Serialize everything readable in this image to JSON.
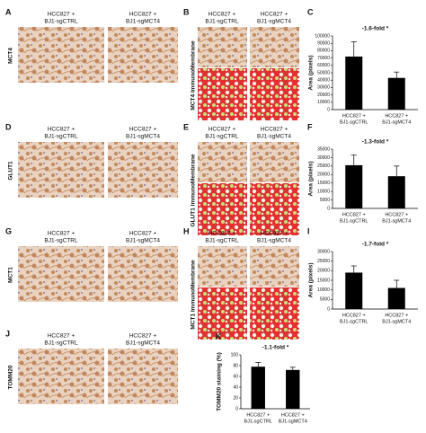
{
  "panels": [
    {
      "letter": "A",
      "stain": "MCT4",
      "mid_letter": "B",
      "mid_label": "MCT4 ImmunoMembrane",
      "headers": [
        [
          "HCC827 +",
          "BJ1-sgCTRL"
        ],
        [
          "HCC827 +",
          "BJ1-sgMCT4"
        ]
      ],
      "mid_headers": [
        [
          "HCC827 +",
          "BJ1-sgCTRL"
        ],
        [
          "HCC827 +",
          "BJ1-sgMCT4"
        ]
      ]
    },
    {
      "letter": "D",
      "stain": "GLUT1",
      "mid_letter": "E",
      "mid_label": "GLUT1 ImmunoMembrane",
      "headers": [
        [
          "HCC827 +",
          "BJ1-sgCTRL"
        ],
        [
          "HCC827 +",
          "BJ1-sgMCT4"
        ]
      ],
      "mid_headers": [
        [
          "HCC827 +",
          "BJ1-sgCTRL"
        ],
        [
          "HCC827 +",
          "BJ1-sgMCT4"
        ]
      ]
    },
    {
      "letter": "G",
      "stain": "MCT1",
      "mid_letter": "H",
      "mid_label": "MCT1 ImmunoMembrane",
      "headers": [
        [
          "HCC827 +",
          "BJ1-sgCTRL"
        ],
        [
          "HCC827 +",
          "BJ1-sgMCT4"
        ]
      ],
      "mid_headers": [
        [
          "HCC827 +",
          "BJ1-sgCTRL"
        ],
        [
          "HCC827 +",
          "BJ1-sgMCT4"
        ]
      ]
    },
    {
      "letter": "J",
      "stain": "TOMM20",
      "headers": [
        [
          "HCC827 +",
          "BJ1-sgCTRL"
        ],
        [
          "HCC827 +",
          "BJ1-sgMCT4"
        ]
      ]
    }
  ],
  "chart_data": [
    {
      "type": "bar",
      "letter": "C",
      "title": "-1.6-fold *",
      "ylabel": "Area (pixels)",
      "categories": [
        [
          "HCC827 +",
          "BJ1-sgCTRL"
        ],
        [
          "HCC827 +",
          "BJ1-sgMCT4"
        ]
      ],
      "series": [
        {
          "color": "#000000",
          "values": [
            72000,
            43000
          ],
          "errors": [
            20000,
            8000
          ]
        }
      ],
      "ylim": [
        0,
        100000
      ],
      "yticks": [
        0,
        10000,
        20000,
        30000,
        40000,
        50000,
        60000,
        70000,
        80000,
        90000,
        100000
      ]
    },
    {
      "type": "bar",
      "letter": "F",
      "title": "-1.3-fold *",
      "ylabel": "Area (pixels)",
      "categories": [
        [
          "HCC827 +",
          "BJ1-sgCTRL"
        ],
        [
          "HCC827 +",
          "BJ1-sgMCT4"
        ]
      ],
      "series": [
        {
          "color": "#000000",
          "values": [
            25500,
            19000
          ],
          "errors": [
            6000,
            6000
          ]
        }
      ],
      "ylim": [
        0,
        35000
      ],
      "yticks": [
        0,
        5000,
        10000,
        15000,
        20000,
        25000,
        30000,
        35000
      ]
    },
    {
      "type": "bar",
      "letter": "I",
      "title": "-1.7-fold *",
      "ylabel": "Area (pixels)",
      "categories": [
        [
          "HCC827 +",
          "BJ1-sgCTRL"
        ],
        [
          "HCC827 +",
          "BJ1-sgMCT4"
        ]
      ],
      "series": [
        {
          "color": "#000000",
          "values": [
            19000,
            11000
          ],
          "errors": [
            3500,
            4000
          ]
        }
      ],
      "ylim": [
        0,
        30000
      ],
      "yticks": [
        0,
        5000,
        10000,
        15000,
        20000,
        25000,
        30000
      ]
    },
    {
      "type": "bar",
      "letter": "K",
      "title": "-1.1-fold *",
      "ylabel": "TOMM20 staining (%)",
      "categories": [
        [
          "HCC827 +",
          "BJ1-sgCTRL"
        ],
        [
          "HCC827 +",
          "BJ1-sgMCT4"
        ]
      ],
      "series": [
        {
          "color": "#000000",
          "values": [
            78,
            72
          ],
          "errors": [
            8,
            5
          ]
        }
      ],
      "ylim": [
        0,
        100
      ],
      "yticks": [
        0,
        20,
        40,
        60,
        80,
        100
      ]
    }
  ]
}
